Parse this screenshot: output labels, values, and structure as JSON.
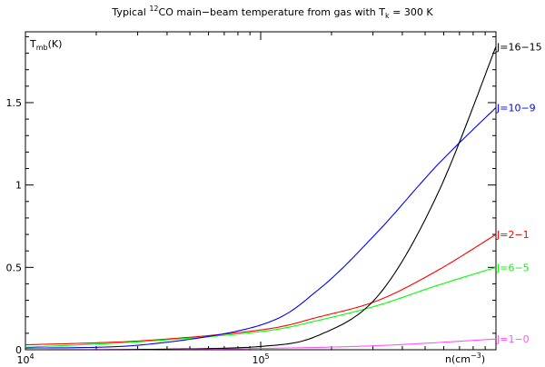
{
  "chart_data": {
    "type": "line",
    "title": {
      "prefix": "Typical ",
      "iso_sup": "12",
      "mid": "CO main−beam temperature from gas with T",
      "sub": "k",
      "suffix": " = 300 K"
    },
    "ylabel": {
      "main": "T",
      "sub": "mb",
      "unit": "(K)"
    },
    "xlabel": {
      "main": "n(cm",
      "sup": "−3",
      "close": ")"
    },
    "x_scale": "log",
    "xlim": [
      10000,
      1000000
    ],
    "ylim": [
      0,
      1.93
    ],
    "y_ticks": [
      {
        "value": 0,
        "label": "0"
      },
      {
        "value": 0.5,
        "label": "0.5"
      },
      {
        "value": 1,
        "label": "1"
      },
      {
        "value": 1.5,
        "label": "1.5"
      }
    ],
    "x_ticks": [
      {
        "value": 10000,
        "base": "10",
        "exp": "4"
      },
      {
        "value": 100000,
        "base": "10",
        "exp": "5"
      }
    ],
    "grid": false,
    "legend": "labels at right end of each curve",
    "series": [
      {
        "name": "J=1−0",
        "color": "#ff55ff",
        "x": [
          10000,
          31623,
          100000,
          316228,
          1000000
        ],
        "y": [
          0.0,
          0.002,
          0.008,
          0.025,
          0.065
        ]
      },
      {
        "name": "J=2−1",
        "color": "#ff0000",
        "x": [
          10000,
          31623,
          100000,
          177828,
          316228,
          562341,
          1000000
        ],
        "y": [
          0.03,
          0.055,
          0.12,
          0.2,
          0.3,
          0.48,
          0.7
        ]
      },
      {
        "name": "J=6−5",
        "color": "#00ff00",
        "x": [
          10000,
          31623,
          100000,
          177828,
          316228,
          562341,
          1000000
        ],
        "y": [
          0.015,
          0.05,
          0.11,
          0.18,
          0.27,
          0.39,
          0.5
        ]
      },
      {
        "name": "J=10−9",
        "color": "#0000ff",
        "x": [
          10000,
          31623,
          100000,
          177828,
          316228,
          562341,
          1000000
        ],
        "y": [
          0.01,
          0.03,
          0.15,
          0.37,
          0.72,
          1.12,
          1.47
        ]
      },
      {
        "name": "J=16−15",
        "color": "#000000",
        "x": [
          10000,
          31623,
          100000,
          177828,
          316228,
          562341,
          1000000
        ],
        "y": [
          0.0,
          0.002,
          0.02,
          0.09,
          0.33,
          0.94,
          1.84
        ]
      }
    ]
  }
}
